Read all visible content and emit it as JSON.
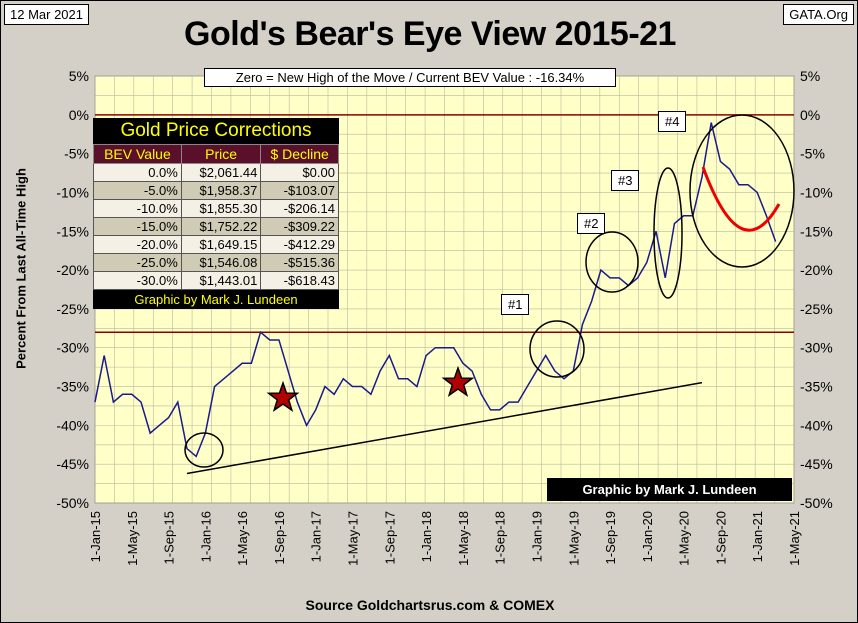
{
  "header": {
    "date": "12 Mar 2021",
    "site": "GATA.Org",
    "title": "Gold's Bear's Eye View 2015-21",
    "subtitle": "Zero = New High of the Move / Current  BEV Value : -16.34%",
    "credit": "Graphic by Mark J. Lundeen",
    "source": "Source Goldchartsrus.com & COMEX"
  },
  "table": {
    "title": "Gold Price Corrections",
    "headers": [
      "BEV Value",
      "Price",
      "$ Decline"
    ],
    "rows": [
      [
        "0.0%",
        "$2,061.44",
        "$0.00"
      ],
      [
        "-5.0%",
        "$1,958.37",
        "-$103.07"
      ],
      [
        "-10.0%",
        "$1,855.30",
        "-$206.14"
      ],
      [
        "-15.0%",
        "$1,752.22",
        "-$309.22"
      ],
      [
        "-20.0%",
        "$1,649.15",
        "-$412.29"
      ],
      [
        "-25.0%",
        "$1,546.08",
        "-$515.36"
      ],
      [
        "-30.0%",
        "$1,443.01",
        "-$618.43"
      ]
    ],
    "footer": "Graphic by Mark J. Lundeen"
  },
  "annotations": {
    "labels": [
      "#1",
      "#2",
      "#3",
      "#4"
    ]
  },
  "chart_data": {
    "type": "line",
    "ylabel": "Percent  From Last  All-Time High",
    "ylim": [
      -50,
      5
    ],
    "yticks": [
      "5%",
      "0%",
      "-5%",
      "-10%",
      "-15%",
      "-20%",
      "-25%",
      "-30%",
      "-35%",
      "-40%",
      "-45%",
      "-50%"
    ],
    "xticks": [
      "1-Jan-15",
      "1-May-15",
      "1-Sep-15",
      "1-Jan-16",
      "1-May-16",
      "1-Sep-16",
      "1-Jan-17",
      "1-May-17",
      "1-Sep-17",
      "1-Jan-18",
      "1-May-18",
      "1-Sep-18",
      "1-Jan-19",
      "1-May-19",
      "1-Sep-19",
      "1-Jan-20",
      "1-May-20",
      "1-Sep-20",
      "1-Jan-21",
      "1-May-21"
    ],
    "xrange": [
      "2015-01",
      "2021-05"
    ],
    "grid": true,
    "series_color": "#1a1a8c",
    "ref_lines": [
      0,
      -28
    ],
    "ref_color": "#8b0000",
    "series": [
      {
        "x": [
          "2015-01",
          "2015-02",
          "2015-03",
          "2015-04",
          "2015-05",
          "2015-06",
          "2015-07",
          "2015-08",
          "2015-09",
          "2015-10",
          "2015-11",
          "2015-12",
          "2016-01",
          "2016-02",
          "2016-03",
          "2016-04",
          "2016-05",
          "2016-06",
          "2016-07",
          "2016-08",
          "2016-09",
          "2016-10",
          "2016-11",
          "2016-12",
          "2017-01",
          "2017-02",
          "2017-03",
          "2017-04",
          "2017-05",
          "2017-06",
          "2017-07",
          "2017-08",
          "2017-09",
          "2017-10",
          "2017-11",
          "2017-12",
          "2018-01",
          "2018-02",
          "2018-03",
          "2018-04",
          "2018-05",
          "2018-06",
          "2018-07",
          "2018-08",
          "2018-09",
          "2018-10",
          "2018-11",
          "2018-12",
          "2019-01",
          "2019-02",
          "2019-03",
          "2019-04",
          "2019-05",
          "2019-06",
          "2019-07",
          "2019-08",
          "2019-09",
          "2019-10",
          "2019-11",
          "2019-12",
          "2020-01",
          "2020-02",
          "2020-03",
          "2020-04",
          "2020-05",
          "2020-06",
          "2020-07",
          "2020-08",
          "2020-09",
          "2020-10",
          "2020-11",
          "2020-12",
          "2021-01",
          "2021-02",
          "2021-03"
        ],
        "values": [
          -37,
          -31,
          -37,
          -36,
          -36,
          -37,
          -41,
          -40,
          -39,
          -37,
          -43,
          -44,
          -41,
          -35,
          -34,
          -33,
          -32,
          -32,
          -28,
          -29,
          -29,
          -33,
          -37,
          -40,
          -38,
          -35,
          -36,
          -34,
          -35,
          -35,
          -36,
          -33,
          -31,
          -34,
          -34,
          -35,
          -31,
          -30,
          -30,
          -30,
          -32,
          -33,
          -36,
          -38,
          -38,
          -37,
          -37,
          -35,
          -33,
          -31,
          -33,
          -34,
          -33,
          -27,
          -24,
          -20,
          -21,
          -21,
          -22,
          -21,
          -19,
          -15,
          -21,
          -14,
          -13,
          -13,
          -8,
          -1,
          -6,
          -7,
          -9,
          -9,
          -10,
          -13,
          -16.34
        ]
      }
    ],
    "trendline": {
      "from": [
        "2015-11",
        -46.2
      ],
      "to": [
        "2020-07",
        -34.5
      ]
    }
  }
}
